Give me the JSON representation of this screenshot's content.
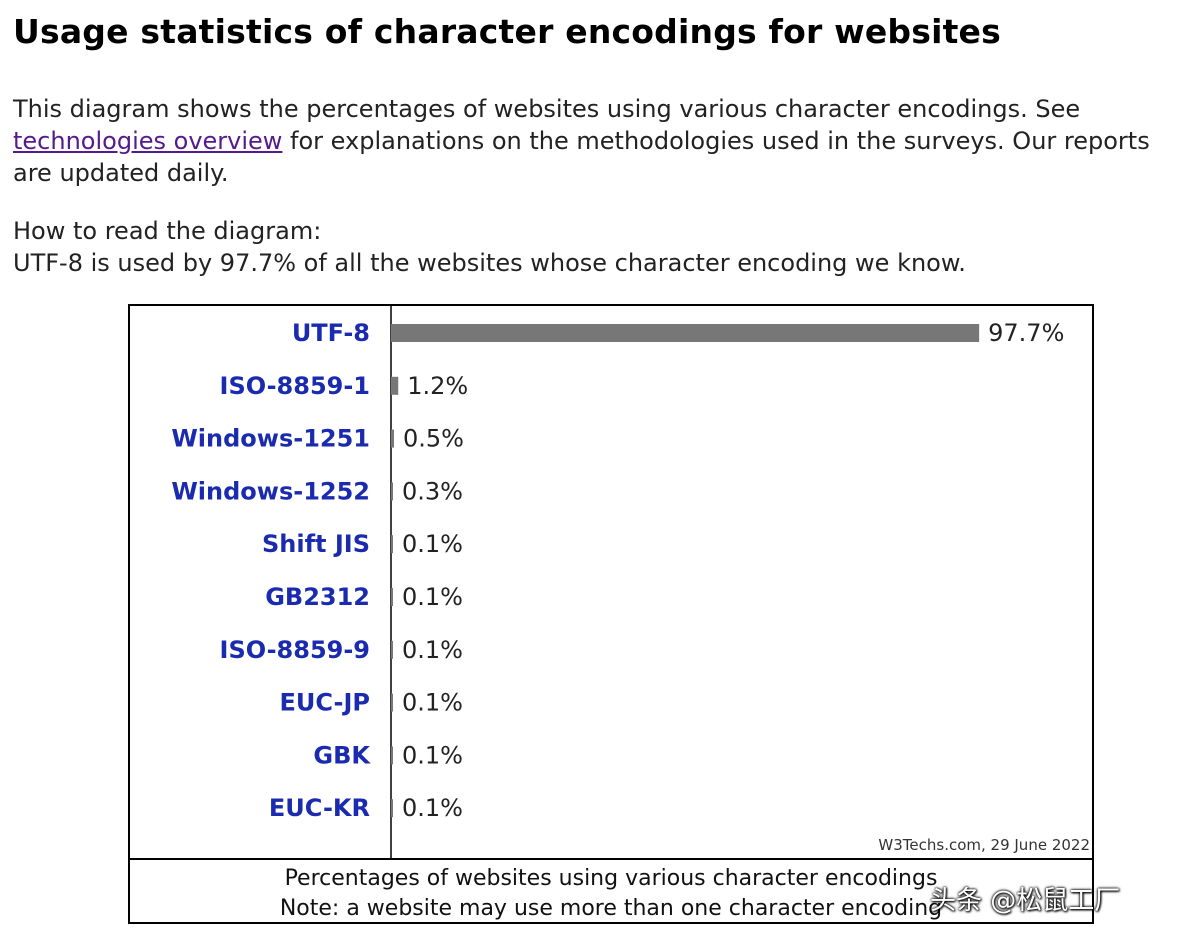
{
  "page": {
    "title": "Usage statistics of character encodings for websites",
    "intro_before_link": "This diagram shows the percentages of websites using various character encodings. See ",
    "intro_link": "technologies overview",
    "intro_after_link": " for explanations on the methodologies used in the surveys. Our reports are updated daily.",
    "howto_heading": "How to read the diagram:",
    "howto_text": "UTF-8 is used by 97.7% of all the websites whose character encoding we know.",
    "watermark": "头条 @松鼠工厂"
  },
  "chart_data": {
    "type": "bar",
    "orientation": "horizontal",
    "categories": [
      "UTF-8",
      "ISO-8859-1",
      "Windows-1251",
      "Windows-1252",
      "Shift JIS",
      "GB2312",
      "ISO-8859-9",
      "EUC-JP",
      "GBK",
      "EUC-KR"
    ],
    "values": [
      97.7,
      1.2,
      0.5,
      0.3,
      0.1,
      0.1,
      0.1,
      0.1,
      0.1,
      0.1
    ],
    "value_labels": [
      "97.7%",
      "1.2%",
      "0.5%",
      "0.3%",
      "0.1%",
      "0.1%",
      "0.1%",
      "0.1%",
      "0.1%",
      "0.1%"
    ],
    "xlim": [
      0,
      100
    ],
    "credit": "W3Techs.com, 29 June 2022",
    "caption_line1": "Percentages of websites using various character encodings",
    "caption_line2": "Note: a website may use more than one character encoding",
    "colors": {
      "bar": "#777777",
      "category_label": "#1a2bb0"
    }
  }
}
